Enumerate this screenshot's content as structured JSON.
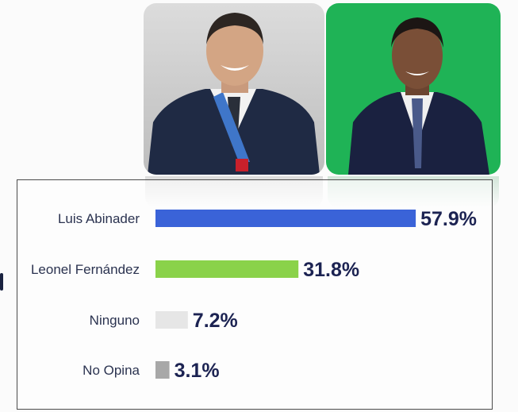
{
  "photos": [
    {
      "name": "Luis Abinader",
      "background": "#d2d2d2"
    },
    {
      "name": "Leonel Fernández",
      "background": "#1eb155"
    }
  ],
  "chart_data": {
    "type": "bar",
    "orientation": "horizontal",
    "categories": [
      "Luis Abinader",
      "Leonel Fernández",
      "Ninguno",
      "No Opina"
    ],
    "values": [
      57.9,
      31.8,
      7.2,
      3.1
    ],
    "value_labels": [
      "57.9%",
      "31.8%",
      "7.2%",
      "3.1%"
    ],
    "colors": [
      "#3a63d8",
      "#8ad24a",
      "#e6e6e6",
      "#a8a8a8"
    ],
    "xlim": [
      0,
      60
    ],
    "grid": false,
    "legend": "none"
  }
}
